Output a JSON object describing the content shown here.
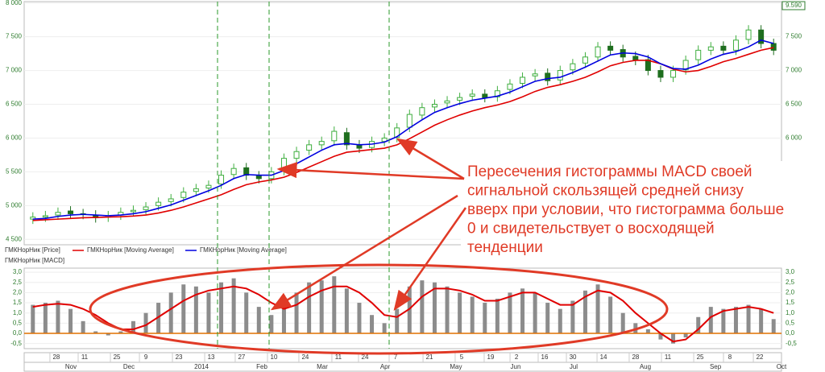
{
  "chart_data": [
    {
      "type": "candlestick",
      "top_right_label": "9.590",
      "price_legend": "ГМКНорНик [Price]",
      "up_color": "#3fae3f",
      "down_color": "#1e6e1e",
      "open": [
        4800,
        4830,
        4860,
        4920,
        4880,
        4860,
        4830,
        4860,
        4910,
        4940,
        5000,
        5060,
        5120,
        5210,
        5260,
        5320,
        5460,
        5560,
        5440,
        5400,
        5520,
        5700,
        5820,
        5900,
        5960,
        6080,
        5900,
        5860,
        5950,
        6010,
        6160,
        6340,
        6460,
        6520,
        6560,
        6620,
        6650,
        6610,
        6720,
        6810,
        6920,
        6960,
        6860,
        7010,
        7110,
        7200,
        7360,
        7310,
        7210,
        7160,
        7000,
        6900,
        7010,
        7160,
        7300,
        7360,
        7300,
        7460,
        7600,
        7400
      ],
      "close": [
        4830,
        4850,
        4900,
        4880,
        4870,
        4820,
        4850,
        4900,
        4930,
        4980,
        5050,
        5100,
        5200,
        5250,
        5300,
        5450,
        5550,
        5450,
        5400,
        5500,
        5700,
        5800,
        5900,
        5950,
        6100,
        5900,
        5850,
        5950,
        6000,
        6150,
        6350,
        6450,
        6500,
        6550,
        6600,
        6650,
        6600,
        6700,
        6800,
        6900,
        6950,
        6850,
        7000,
        7100,
        7200,
        7350,
        7300,
        7200,
        7150,
        7000,
        6900,
        7000,
        7150,
        7300,
        7350,
        7300,
        7450,
        7600,
        7400,
        7300
      ],
      "series": [
        {
          "name": "ГМКНорНик [Moving Average]",
          "color": "#e00000",
          "values": [
            4780,
            4790,
            4800,
            4810,
            4820,
            4825,
            4830,
            4835,
            4845,
            4860,
            4890,
            4930,
            4980,
            5040,
            5100,
            5160,
            5240,
            5310,
            5350,
            5380,
            5420,
            5490,
            5570,
            5650,
            5730,
            5790,
            5810,
            5830,
            5850,
            5900,
            5990,
            6090,
            6190,
            6270,
            6340,
            6400,
            6450,
            6490,
            6540,
            6610,
            6690,
            6750,
            6790,
            6840,
            6900,
            6980,
            7070,
            7120,
            7150,
            7150,
            7100,
            7020,
            6980,
            7000,
            7060,
            7130,
            7180,
            7240,
            7300,
            7340
          ]
        },
        {
          "name": "ГМКНорНик [Moving Average]",
          "color": "#0000e0",
          "values": [
            4800,
            4810,
            4840,
            4860,
            4870,
            4860,
            4850,
            4860,
            4880,
            4910,
            4960,
            5010,
            5080,
            5150,
            5220,
            5300,
            5400,
            5460,
            5450,
            5450,
            5520,
            5620,
            5720,
            5820,
            5900,
            5920,
            5900,
            5910,
            5940,
            6020,
            6150,
            6270,
            6380,
            6450,
            6510,
            6560,
            6590,
            6620,
            6680,
            6760,
            6840,
            6880,
            6900,
            6970,
            7050,
            7140,
            7230,
            7260,
            7250,
            7200,
            7100,
            7030,
            7020,
            7080,
            7170,
            7240,
            7280,
            7350,
            7450,
            7400
          ]
        }
      ],
      "ylim": [
        4420,
        8020
      ],
      "yticks": [
        {
          "value": 4500,
          "label": "4 500"
        },
        {
          "value": 5000,
          "label": "5 000"
        },
        {
          "value": 5500,
          "label": "5 500"
        },
        {
          "value": 6000,
          "label": "6 000"
        },
        {
          "value": 6500,
          "label": "6 500"
        },
        {
          "value": 7000,
          "label": "7 000"
        },
        {
          "value": 7500,
          "label": "7 500"
        },
        {
          "value": 8000,
          "label": "8 000"
        }
      ]
    },
    {
      "type": "macd",
      "title": "ГМКНорНик [MACD]",
      "color": "#8c8c8c",
      "signal_color": "#e00000",
      "zero_color": "#e07000",
      "values": [
        1.4,
        1.5,
        1.6,
        1.2,
        0.6,
        0.1,
        -0.1,
        0.1,
        0.6,
        1.0,
        1.5,
        2.0,
        2.4,
        2.3,
        2.0,
        2.5,
        2.7,
        2.0,
        1.3,
        0.9,
        1.5,
        2.0,
        2.5,
        2.6,
        2.8,
        2.2,
        1.5,
        0.9,
        0.5,
        1.2,
        2.3,
        2.6,
        2.5,
        2.3,
        2.0,
        1.8,
        1.5,
        1.7,
        2.0,
        2.2,
        2.0,
        1.5,
        1.2,
        1.6,
        2.1,
        2.4,
        1.8,
        1.0,
        0.5,
        0.2,
        -0.3,
        -0.5,
        -0.2,
        0.8,
        1.3,
        1.2,
        1.3,
        1.4,
        1.2,
        0.7
      ],
      "signal": [
        1.3,
        1.4,
        1.45,
        1.4,
        1.2,
        0.9,
        0.5,
        0.2,
        0.2,
        0.4,
        0.8,
        1.2,
        1.6,
        1.9,
        2.1,
        2.2,
        2.3,
        2.2,
        1.9,
        1.5,
        1.2,
        1.4,
        1.8,
        2.1,
        2.3,
        2.3,
        2.0,
        1.5,
        0.9,
        0.8,
        1.2,
        1.8,
        2.2,
        2.2,
        2.1,
        1.9,
        1.6,
        1.6,
        1.8,
        2.0,
        2.0,
        1.7,
        1.4,
        1.4,
        1.8,
        2.1,
        2.0,
        1.6,
        1.0,
        0.5,
        0.0,
        -0.4,
        -0.3,
        0.2,
        0.8,
        1.1,
        1.2,
        1.3,
        1.2,
        1.0
      ],
      "ylim": [
        -0.75,
        3.2
      ],
      "yticks": [
        {
          "value": -0.5,
          "label": "-0,5"
        },
        {
          "value": 0,
          "label": "0,0"
        },
        {
          "value": 0.5,
          "label": "0,5"
        },
        {
          "value": 1,
          "label": "1,0"
        },
        {
          "value": 1.5,
          "label": "1,5"
        },
        {
          "value": 2,
          "label": "2,0"
        },
        {
          "value": 2.5,
          "label": "2,5"
        },
        {
          "value": 3,
          "label": "3,0"
        }
      ],
      "xlim": [
        0,
        60
      ],
      "xticks": [
        {
          "value": 2.37,
          "label": "28"
        },
        {
          "value": 4.62,
          "label": "11"
        },
        {
          "value": 7.19,
          "label": "25"
        },
        {
          "value": 9.5,
          "label": "9"
        },
        {
          "value": 12.13,
          "label": "23"
        },
        {
          "value": 14.7,
          "label": "13"
        },
        {
          "value": 17.13,
          "label": "27"
        },
        {
          "value": 19.7,
          "label": "10"
        },
        {
          "value": 22.2,
          "label": "24"
        },
        {
          "value": 24.83,
          "label": "11"
        },
        {
          "value": 26.95,
          "label": "24"
        },
        {
          "value": 29.39,
          "label": "7"
        },
        {
          "value": 32.09,
          "label": "21"
        },
        {
          "value": 34.65,
          "label": "5"
        },
        {
          "value": 36.96,
          "label": "19"
        },
        {
          "value": 39.02,
          "label": "2"
        },
        {
          "value": 41.26,
          "label": "16"
        },
        {
          "value": 43.51,
          "label": "30"
        },
        {
          "value": 45.95,
          "label": "14"
        },
        {
          "value": 48.51,
          "label": "28"
        },
        {
          "value": 51.08,
          "label": "11"
        },
        {
          "value": 53.65,
          "label": "25"
        },
        {
          "value": 56.02,
          "label": "8"
        },
        {
          "value": 58.4,
          "label": "22"
        }
      ],
      "month_ticks": [
        {
          "value": 3.53,
          "label": "Nov"
        },
        {
          "value": 8.15,
          "label": "Dec"
        },
        {
          "value": 13.93,
          "label": "2014"
        },
        {
          "value": 18.74,
          "label": "Feb"
        },
        {
          "value": 23.55,
          "label": "Mar"
        },
        {
          "value": 28.56,
          "label": "Apr"
        },
        {
          "value": 34.2,
          "label": "May"
        },
        {
          "value": 38.95,
          "label": "Jun"
        },
        {
          "value": 43.57,
          "label": "Jul"
        },
        {
          "value": 49.28,
          "label": "Aug"
        },
        {
          "value": 54.87,
          "label": "Sep"
        },
        {
          "value": 60.13,
          "label": "Oct"
        }
      ]
    }
  ],
  "annotation": {
    "lines": [
      "Пересечения гистограммы MACD своей",
      "сигнальной скользящей средней снизу",
      "вверх при условии, что гистограмма больше",
      "0 и свидетельствует о восходящей",
      "тенденции"
    ]
  }
}
